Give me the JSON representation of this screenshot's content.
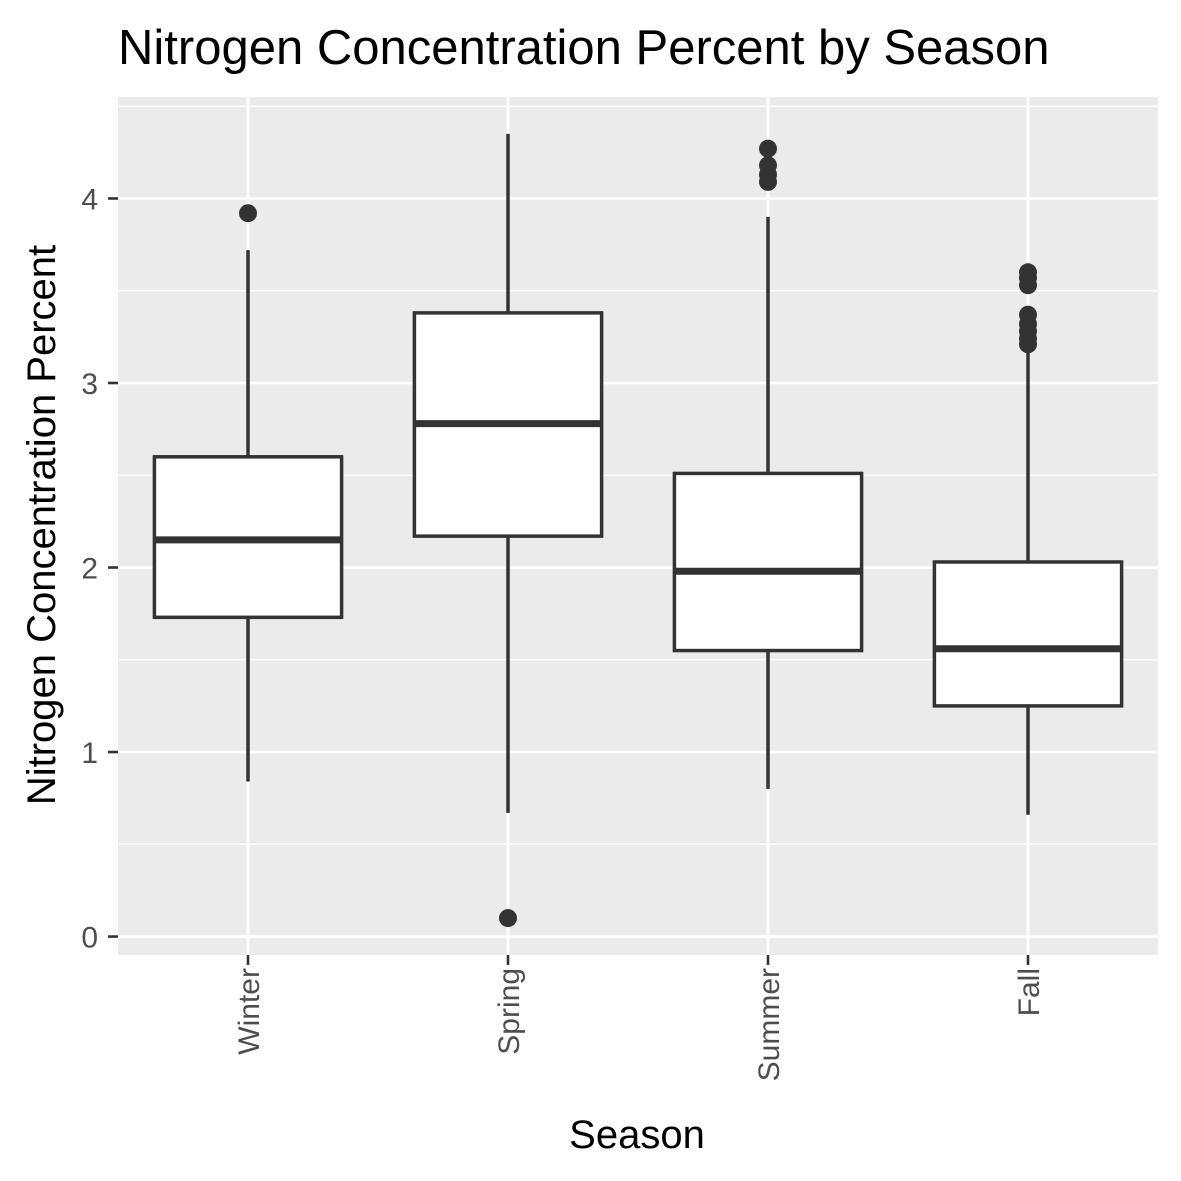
{
  "chart_data": {
    "type": "box",
    "title": "Nitrogen Concentration Percent by Season",
    "xlabel": "Season",
    "ylabel": "Nitrogen Concentration Percent",
    "categories": [
      "Winter",
      "Spring",
      "Summer",
      "Fall"
    ],
    "ylim": [
      -0.1,
      4.55
    ],
    "y_ticks": [
      "0",
      "1",
      "2",
      "3",
      "4"
    ],
    "grid": true,
    "legend": "none",
    "boxes": [
      {
        "category": "Winter",
        "whisker_low": 0.84,
        "q1": 1.73,
        "median": 2.15,
        "q3": 2.6,
        "whisker_high": 3.72,
        "outliers": [
          3.92
        ]
      },
      {
        "category": "Spring",
        "whisker_low": 0.67,
        "q1": 2.17,
        "median": 2.78,
        "q3": 3.38,
        "whisker_high": 4.35,
        "outliers": [
          0.1
        ]
      },
      {
        "category": "Summer",
        "whisker_low": 0.8,
        "q1": 1.55,
        "median": 1.98,
        "q3": 2.51,
        "whisker_high": 3.9,
        "outliers": [
          4.09,
          4.13,
          4.18,
          4.27
        ]
      },
      {
        "category": "Fall",
        "whisker_low": 0.66,
        "q1": 1.25,
        "median": 1.56,
        "q3": 2.03,
        "whisker_high": 3.18,
        "outliers": [
          3.21,
          3.24,
          3.28,
          3.32,
          3.37,
          3.53,
          3.57,
          3.6
        ]
      }
    ],
    "colors": {
      "panel_background": "#ebebeb",
      "grid": "#ffffff",
      "box_fill": "#ffffff",
      "box_line": "#333333",
      "tick_text": "#4d4d4d",
      "tick_mark": "#333333"
    }
  }
}
